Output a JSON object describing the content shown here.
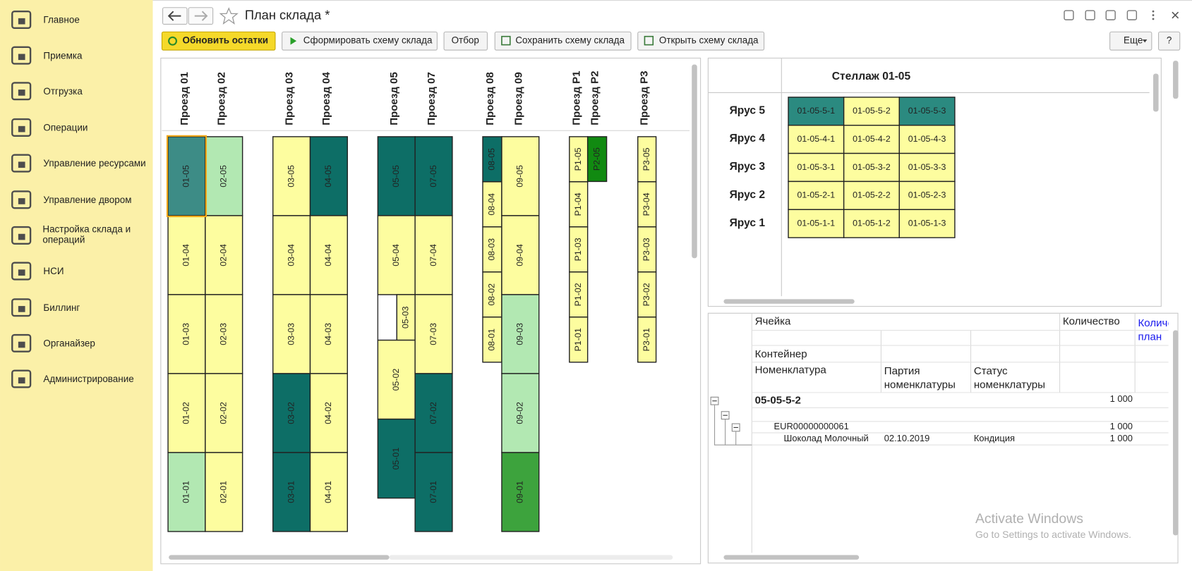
{
  "sidebar": {
    "items": [
      "Главное",
      "Приемка",
      "Отгрузка",
      "Операции",
      "Управление ресурсами",
      "Управление двором",
      "Настройка склада и операций",
      "НСИ",
      "Биллинг",
      "Органайзер",
      "Администрирование"
    ]
  },
  "header": {
    "title": "План склада *"
  },
  "toolbar": {
    "buttons": [
      "Обновить остатки",
      "Сформировать схему склада",
      "Отбор",
      "Сохранить схему склада",
      "Открыть схему склада",
      "Еще",
      "?"
    ]
  },
  "warehouse_map": {
    "aisles": [
      "Проезд 01",
      "Проезд 02",
      "Проезд 03",
      "Проезд 04",
      "Проезд 05",
      "Проезд 07",
      "Проезд 08",
      "Проезд 09",
      "Проезд P1",
      "Проезд P2",
      "Проезд P3"
    ],
    "cells": [
      {
        "label": "01-05",
        "color": "#3d8c86"
      },
      {
        "label": "01-04",
        "color": "#fdfd9f"
      },
      {
        "label": "01-03",
        "color": "#fdfd9f"
      },
      {
        "label": "01-02",
        "color": "#fdfd9f"
      },
      {
        "label": "01-01",
        "color": "#b2e8b2"
      },
      {
        "label": "02-05",
        "color": "#b2e8b2"
      },
      {
        "label": "02-04",
        "color": "#fdfd9f"
      },
      {
        "label": "02-03",
        "color": "#fdfd9f"
      },
      {
        "label": "02-02",
        "color": "#fdfd9f"
      },
      {
        "label": "02-01",
        "color": "#fdfd9f"
      },
      {
        "label": "03-05",
        "color": "#fdfd9f"
      },
      {
        "label": "03-04",
        "color": "#fdfd9f"
      },
      {
        "label": "03-03",
        "color": "#fdfd9f"
      },
      {
        "label": "03-02",
        "color": "#0d6e66"
      },
      {
        "label": "03-01",
        "color": "#0d6e66"
      },
      {
        "label": "04-05",
        "color": "#0d6e66"
      },
      {
        "label": "04-04",
        "color": "#fdfd9f"
      },
      {
        "label": "04-03",
        "color": "#fdfd9f"
      },
      {
        "label": "04-02",
        "color": "#fdfd9f"
      },
      {
        "label": "04-01",
        "color": "#fdfd9f"
      },
      {
        "label": "05-05",
        "color": "#0d6e66"
      },
      {
        "label": "05-04",
        "color": "#fdfd9f"
      },
      {
        "label": "05-03",
        "color": "#fdfd9f"
      },
      {
        "label": "05-02",
        "color": "#fdfd9f"
      },
      {
        "label": "05-01",
        "color": "#0d6e66"
      },
      {
        "label": "07-05",
        "color": "#0d6e66"
      },
      {
        "label": "07-04",
        "color": "#fdfd9f"
      },
      {
        "label": "07-03",
        "color": "#fdfd9f"
      },
      {
        "label": "07-02",
        "color": "#0d6e66"
      },
      {
        "label": "07-01",
        "color": "#0d6e66"
      },
      {
        "label": "08-05",
        "color": "#0d6e66"
      },
      {
        "label": "08-04",
        "color": "#fdfd9f"
      },
      {
        "label": "08-03",
        "color": "#fdfd9f"
      },
      {
        "label": "08-02",
        "color": "#fdfd9f"
      },
      {
        "label": "08-01",
        "color": "#fdfd9f"
      },
      {
        "label": "09-05",
        "color": "#fdfd9f"
      },
      {
        "label": "09-04",
        "color": "#fdfd9f"
      },
      {
        "label": "09-03",
        "color": "#b2e8b2"
      },
      {
        "label": "09-02",
        "color": "#b2e8b2"
      },
      {
        "label": "09-01",
        "color": "#3da33d"
      },
      {
        "label": "P1-05",
        "color": "#fdfd9f"
      },
      {
        "label": "P1-04",
        "color": "#fdfd9f"
      },
      {
        "label": "P1-03",
        "color": "#fdfd9f"
      },
      {
        "label": "P1-02",
        "color": "#fdfd9f"
      },
      {
        "label": "P1-01",
        "color": "#fdfd9f"
      },
      {
        "label": "P2-05",
        "color": "#118a11"
      },
      {
        "label": "P3-05",
        "color": "#fdfd9f"
      },
      {
        "label": "P3-04",
        "color": "#fdfd9f"
      },
      {
        "label": "P3-03",
        "color": "#fdfd9f"
      },
      {
        "label": "P3-02",
        "color": "#fdfd9f"
      },
      {
        "label": "P3-01",
        "color": "#fdfd9f"
      }
    ]
  },
  "rack": {
    "title": "Стеллаж 01-05",
    "tiers": [
      "Ярус 5",
      "Ярус 4",
      "Ярус 3",
      "Ярус 2",
      "Ярус 1"
    ],
    "cells": [
      [
        {
          "label": "01-05-5-1",
          "color": "#2b8a80"
        },
        {
          "label": "01-05-5-2",
          "color": "#fdfd9f"
        },
        {
          "label": "01-05-5-3",
          "color": "#2b8a80"
        }
      ],
      [
        {
          "label": "01-05-4-1",
          "color": "#fdfd9f"
        },
        {
          "label": "01-05-4-2",
          "color": "#fdfd9f"
        },
        {
          "label": "01-05-4-3",
          "color": "#fdfd9f"
        }
      ],
      [
        {
          "label": "01-05-3-1",
          "color": "#fdfd9f"
        },
        {
          "label": "01-05-3-2",
          "color": "#fdfd9f"
        },
        {
          "label": "01-05-3-3",
          "color": "#fdfd9f"
        }
      ],
      [
        {
          "label": "01-05-2-1",
          "color": "#fdfd9f"
        },
        {
          "label": "01-05-2-2",
          "color": "#fdfd9f"
        },
        {
          "label": "01-05-2-3",
          "color": "#fdfd9f"
        }
      ],
      [
        {
          "label": "01-05-1-1",
          "color": "#fdfd9f"
        },
        {
          "label": "01-05-1-2",
          "color": "#fdfd9f"
        },
        {
          "label": "01-05-1-3",
          "color": "#fdfd9f"
        }
      ]
    ]
  },
  "details": {
    "columns": {
      "cell": "Ячейка",
      "quantity": "Количество",
      "planned": "Количество план",
      "container": "Контейнер",
      "item": "Номенклатура",
      "batch": "Партия номенклатуры",
      "status": "Статус номенклатуры"
    },
    "rows": [
      {
        "cell": "05-05-5-2",
        "quantity": "1 000"
      },
      {
        "container": "EUR00000000061",
        "quantity": "1 000"
      },
      {
        "item": "Шоколад Молочный",
        "batch": "02.10.2019",
        "status": "Кондиция",
        "quantity": "1 000"
      }
    ]
  },
  "watermark": {
    "title": "Activate Windows",
    "subtitle": "Go to Settings to activate Windows."
  }
}
